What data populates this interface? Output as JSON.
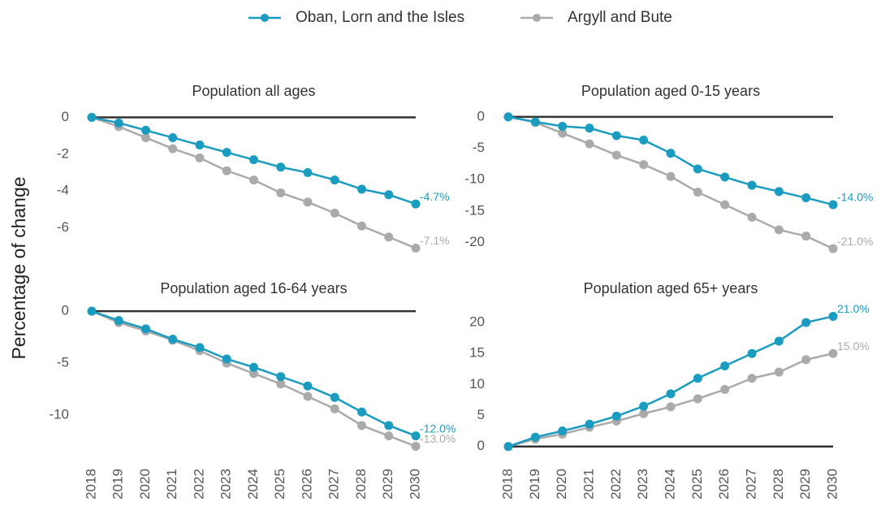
{
  "ylabel": "Percentage of change",
  "chart_data": [
    {
      "type": "line",
      "title": "Population all ages",
      "show_x_labels": false,
      "categories": [
        "2018",
        "2019",
        "2020",
        "2021",
        "2022",
        "2023",
        "2024",
        "2025",
        "2026",
        "2027",
        "2028",
        "2029",
        "2030"
      ],
      "ylim": [
        -7.3,
        0.2
      ],
      "yticks": [
        0,
        -2,
        -4,
        -6
      ],
      "series": [
        {
          "name": "Oban, Lorn and the Isles",
          "color": "#1a9bc0",
          "values": [
            0,
            -0.3,
            -0.7,
            -1.1,
            -1.5,
            -1.9,
            -2.3,
            -2.7,
            -3.0,
            -3.4,
            -3.9,
            -4.2,
            -4.7
          ],
          "value_labels": [
            null,
            null,
            null,
            null,
            null,
            null,
            null,
            null,
            null,
            null,
            null,
            null,
            "-4.7%"
          ]
        },
        {
          "name": "Argyll and Bute",
          "color": "#aaaaaa",
          "values": [
            0,
            -0.5,
            -1.1,
            -1.7,
            -2.2,
            -2.9,
            -3.4,
            -4.1,
            -4.6,
            -5.2,
            -5.9,
            -6.5,
            -7.1
          ],
          "value_labels": [
            null,
            null,
            null,
            null,
            null,
            null,
            null,
            null,
            null,
            null,
            null,
            null,
            "-7.1%"
          ]
        }
      ]
    },
    {
      "type": "line",
      "title": "Population aged 0-15 years",
      "show_x_labels": false,
      "categories": [
        "2018",
        "2019",
        "2020",
        "2021",
        "2022",
        "2023",
        "2024",
        "2025",
        "2026",
        "2027",
        "2028",
        "2029",
        "2030"
      ],
      "ylim": [
        -21.5,
        0.5
      ],
      "yticks": [
        0,
        -5,
        -10,
        -15,
        -20
      ],
      "series": [
        {
          "name": "Oban, Lorn and the Isles",
          "color": "#1a9bc0",
          "values": [
            0,
            -0.8,
            -1.5,
            -1.8,
            -3.0,
            -3.7,
            -5.8,
            -8.3,
            -9.6,
            -10.9,
            -11.9,
            -12.9,
            -14.0
          ],
          "value_labels": [
            null,
            null,
            null,
            null,
            null,
            null,
            null,
            null,
            null,
            null,
            null,
            null,
            "-14.0%"
          ]
        },
        {
          "name": "Argyll and Bute",
          "color": "#aaaaaa",
          "values": [
            0,
            -0.9,
            -2.6,
            -4.3,
            -6.1,
            -7.6,
            -9.5,
            -12.0,
            -14.0,
            -16.0,
            -18.0,
            -19.0,
            -21.0
          ],
          "value_labels": [
            null,
            null,
            null,
            null,
            null,
            null,
            null,
            null,
            null,
            null,
            null,
            null,
            "-21.0%"
          ]
        }
      ]
    },
    {
      "type": "line",
      "title": "Population aged 16-64 years",
      "show_x_labels": true,
      "categories": [
        "2018",
        "2019",
        "2020",
        "2021",
        "2022",
        "2023",
        "2024",
        "2025",
        "2026",
        "2027",
        "2028",
        "2029",
        "2030"
      ],
      "ylim": [
        -13.2,
        0.4
      ],
      "yticks": [
        0,
        -5,
        -10
      ],
      "series": [
        {
          "name": "Oban, Lorn and the Isles",
          "color": "#1a9bc0",
          "values": [
            0,
            -0.9,
            -1.7,
            -2.7,
            -3.5,
            -4.6,
            -5.4,
            -6.3,
            -7.2,
            -8.3,
            -9.7,
            -11.0,
            -12.0
          ],
          "value_labels": [
            null,
            null,
            null,
            null,
            null,
            null,
            null,
            null,
            null,
            null,
            null,
            null,
            "-12.0%"
          ]
        },
        {
          "name": "Argyll and Bute",
          "color": "#aaaaaa",
          "values": [
            0,
            -1.1,
            -1.9,
            -2.8,
            -3.8,
            -5.0,
            -6.0,
            -7.0,
            -8.2,
            -9.4,
            -11.0,
            -12.0,
            -13.0
          ],
          "value_labels": [
            null,
            null,
            null,
            null,
            null,
            null,
            null,
            null,
            null,
            null,
            null,
            null,
            "-13.0%"
          ]
        }
      ]
    },
    {
      "type": "line",
      "title": "Population aged 65+ years",
      "show_x_labels": true,
      "categories": [
        "2018",
        "2019",
        "2020",
        "2021",
        "2022",
        "2023",
        "2024",
        "2025",
        "2026",
        "2027",
        "2028",
        "2029",
        "2030"
      ],
      "ylim": [
        -0.3,
        22.5
      ],
      "yticks": [
        0,
        5,
        10,
        15,
        20
      ],
      "series": [
        {
          "name": "Oban, Lorn and the Isles",
          "color": "#1a9bc0",
          "values": [
            0,
            1.5,
            2.5,
            3.6,
            4.9,
            6.5,
            8.5,
            11.0,
            13.0,
            15.0,
            17.0,
            20.0,
            21.0
          ],
          "value_labels": [
            null,
            null,
            null,
            null,
            null,
            null,
            null,
            null,
            null,
            null,
            null,
            null,
            "21.0%"
          ]
        },
        {
          "name": "Argyll and Bute",
          "color": "#aaaaaa",
          "values": [
            0,
            1.2,
            2.0,
            3.1,
            4.1,
            5.3,
            6.4,
            7.7,
            9.2,
            11.0,
            12.0,
            14.0,
            15.0
          ],
          "value_labels": [
            null,
            null,
            null,
            null,
            null,
            null,
            null,
            null,
            null,
            null,
            null,
            null,
            "15.0%"
          ]
        }
      ]
    }
  ]
}
